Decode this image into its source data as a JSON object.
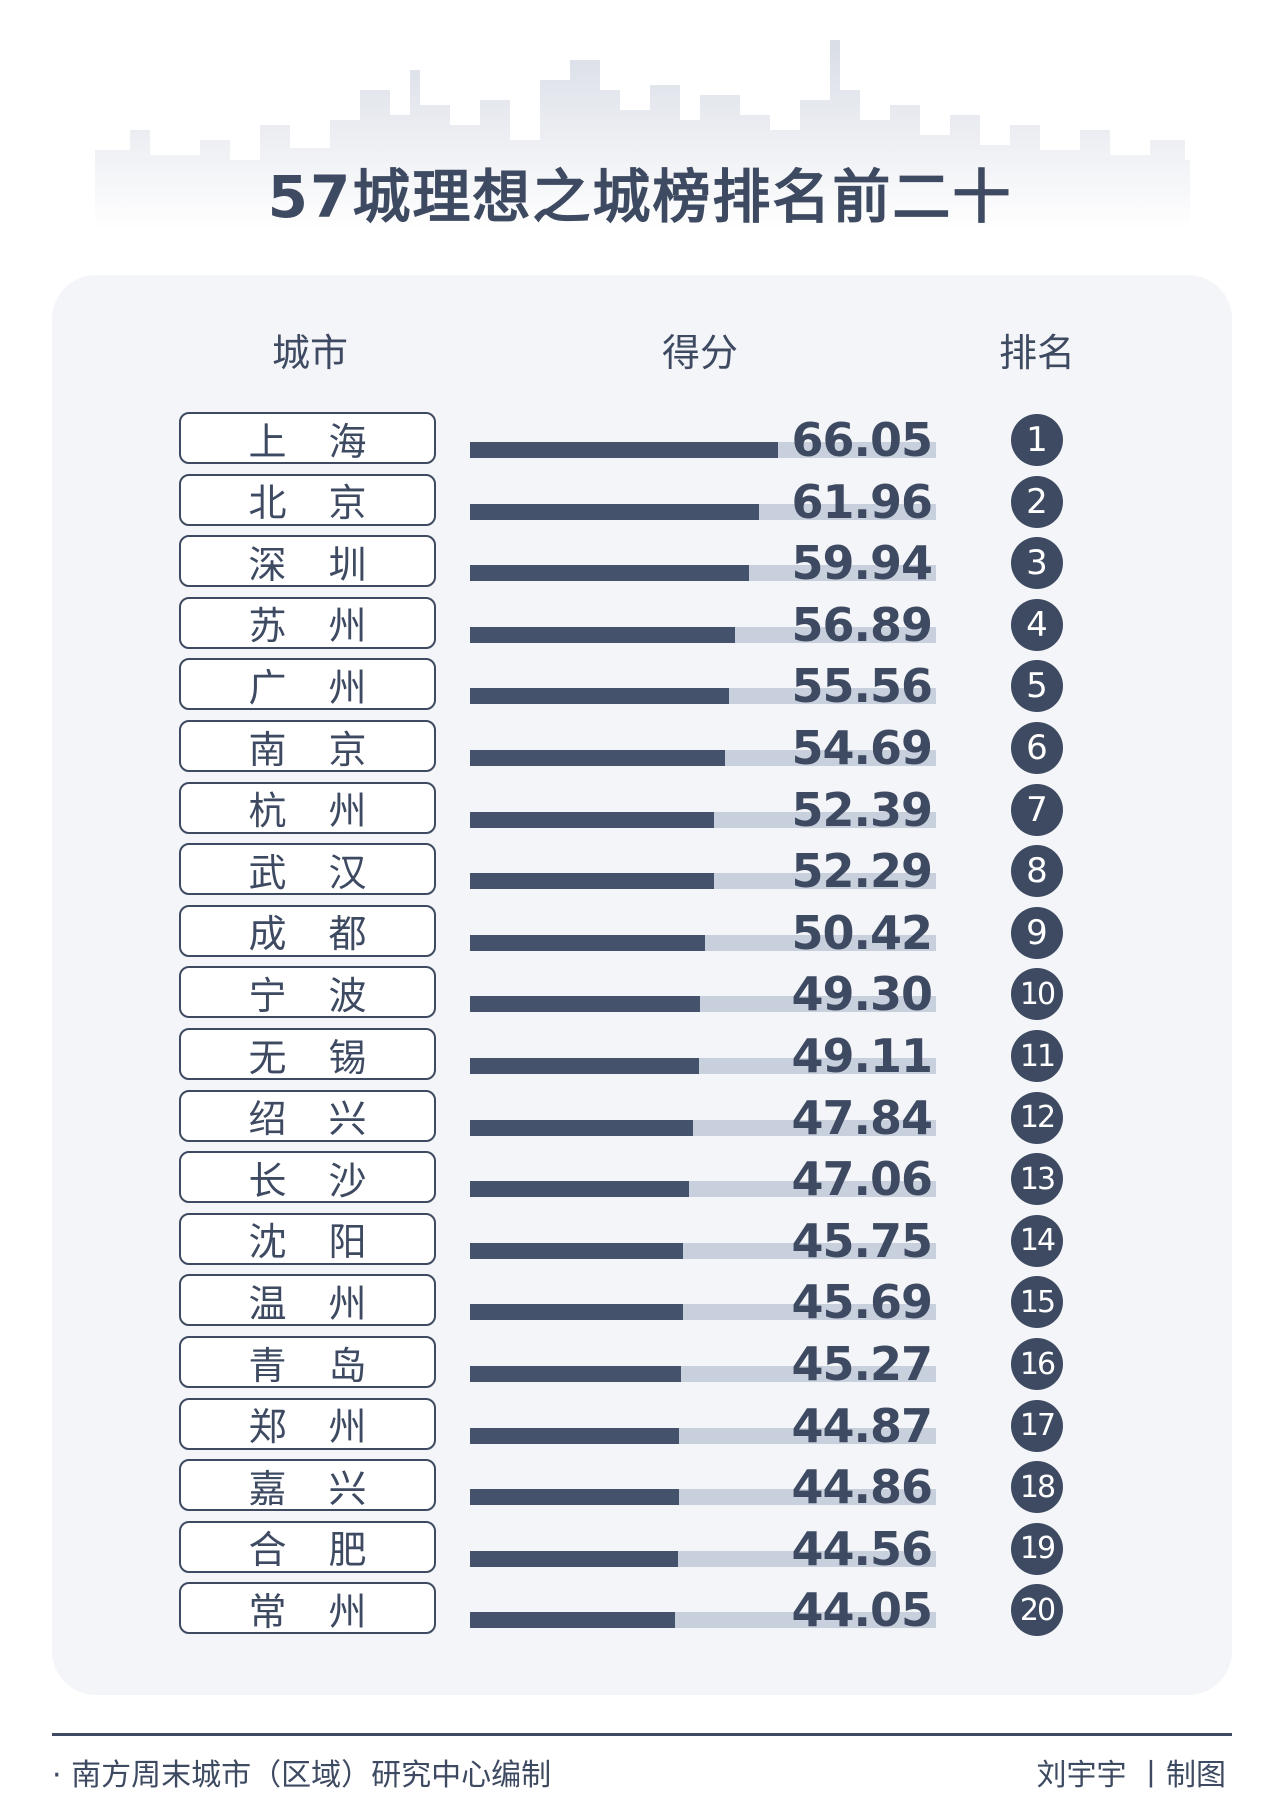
{
  "title": "57城理想之城榜排名前二十",
  "headers": {
    "city": "城市",
    "score": "得分",
    "rank": "排名"
  },
  "chart_data": {
    "type": "bar",
    "orientation": "horizontal",
    "title": "57城理想之城榜排名前二十",
    "categories": [
      "上海",
      "北京",
      "深圳",
      "苏州",
      "广州",
      "南京",
      "杭州",
      "武汉",
      "成都",
      "宁波",
      "无锡",
      "绍兴",
      "长沙",
      "沈阳",
      "温州",
      "青岛",
      "郑州",
      "嘉兴",
      "合肥",
      "常州"
    ],
    "values": [
      66.05,
      61.96,
      59.94,
      56.89,
      55.56,
      54.69,
      52.39,
      52.29,
      50.42,
      49.3,
      49.11,
      47.84,
      47.06,
      45.75,
      45.69,
      45.27,
      44.87,
      44.86,
      44.56,
      44.05
    ],
    "value_labels": [
      "66.05",
      "61.96",
      "59.94",
      "56.89",
      "55.56",
      "54.69",
      "52.39",
      "52.29",
      "50.42",
      "49.30",
      "49.11",
      "47.84",
      "47.06",
      "45.75",
      "45.69",
      "45.27",
      "44.87",
      "44.86",
      "44.56",
      "44.05"
    ],
    "ranks": [
      1,
      2,
      3,
      4,
      5,
      6,
      7,
      8,
      9,
      10,
      11,
      12,
      13,
      14,
      15,
      16,
      17,
      18,
      19,
      20
    ],
    "xlim": [
      0,
      100
    ],
    "bar_color": "#45526b",
    "track_color": "#c9d0dd",
    "grid": false,
    "legend": "none"
  },
  "footer": {
    "source": "· 南方周末城市（区域）研究中心编制",
    "credit": "刘宇宇 丨制图"
  }
}
